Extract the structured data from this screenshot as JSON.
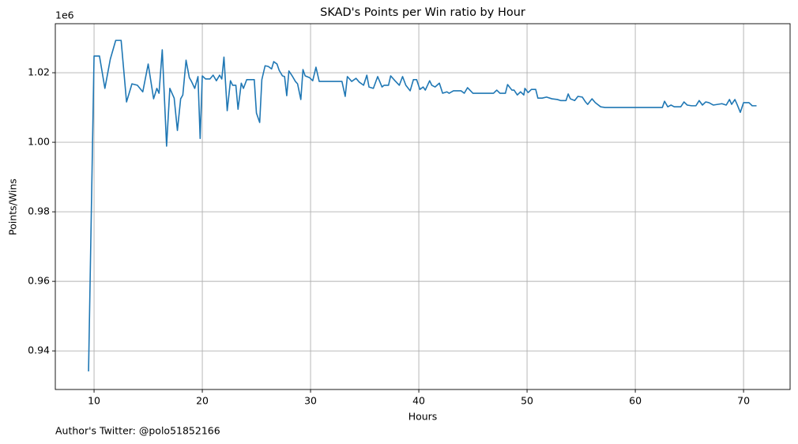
{
  "chart_data": {
    "type": "line",
    "title": "SKAD's Points per Win ratio by Hour",
    "xlabel": "Hours",
    "ylabel": "Points/Wins",
    "y_offset_label": "1e6",
    "footnote": "Author's Twitter: @polo51852166",
    "color": "#1f77b4",
    "grid": true,
    "xlim": [
      6.42,
      74.3
    ],
    "ylim": [
      0.9289,
      1.0341
    ],
    "xticks": [
      10,
      20,
      30,
      40,
      50,
      60,
      70
    ],
    "yticks": [
      0.94,
      0.96,
      0.98,
      {
        "value": 1,
        "label": "1.00"
      },
      1.02
    ],
    "x": [
      9.49,
      10.0,
      10.5,
      11.0,
      11.5,
      12.0,
      12.5,
      13.0,
      13.5,
      14.0,
      14.5,
      15.0,
      15.5,
      15.8,
      16.0,
      16.3,
      16.7,
      17.0,
      17.4,
      17.7,
      18.0,
      18.2,
      18.5,
      18.8,
      19.0,
      19.3,
      19.6,
      19.8,
      20.0,
      20.3,
      20.7,
      21.0,
      21.3,
      21.6,
      21.8,
      22.0,
      22.3,
      22.6,
      22.8,
      23.1,
      23.3,
      23.6,
      23.8,
      24.1,
      24.8,
      25.0,
      25.3,
      25.5,
      25.8,
      26.1,
      26.4,
      26.6,
      26.9,
      27.1,
      27.4,
      27.6,
      27.8,
      28.0,
      28.3,
      28.6,
      28.8,
      29.1,
      29.3,
      29.5,
      29.9,
      30.2,
      30.5,
      30.8,
      32.9,
      33.2,
      33.4,
      33.8,
      34.2,
      34.5,
      34.9,
      35.2,
      35.4,
      35.8,
      36.2,
      36.6,
      36.8,
      37.2,
      37.4,
      37.8,
      38.2,
      38.5,
      38.8,
      39.2,
      39.5,
      39.8,
      40.1,
      40.4,
      40.6,
      41.0,
      41.2,
      41.5,
      41.9,
      42.2,
      42.6,
      42.8,
      43.2,
      43.9,
      44.2,
      44.5,
      45.0,
      46.9,
      47.2,
      47.5,
      48.0,
      48.2,
      48.6,
      48.8,
      49.1,
      49.4,
      49.7,
      49.8,
      50.1,
      50.4,
      50.8,
      51.0,
      51.4,
      51.8,
      52.3,
      52.8,
      53.1,
      53.6,
      53.8,
      54.0,
      54.4,
      54.7,
      55.1,
      55.4,
      55.6,
      56.0,
      56.3,
      56.8,
      57.2,
      62.5,
      62.7,
      63.0,
      63.3,
      63.6,
      64.2,
      64.5,
      64.8,
      65.2,
      65.6,
      65.9,
      66.2,
      66.5,
      66.8,
      67.2,
      67.6,
      68.0,
      68.4,
      68.7,
      68.9,
      69.2,
      69.4,
      69.7,
      70.0,
      70.5,
      70.8,
      71.2
    ],
    "values": [
      0.9341,
      1.0248,
      1.0248,
      1.0155,
      1.0239,
      1.0293,
      1.0293,
      1.0116,
      1.0168,
      1.0164,
      1.0145,
      1.0225,
      1.0125,
      1.0155,
      1.0141,
      1.0266,
      0.9989,
      1.0155,
      1.0127,
      1.0034,
      1.0125,
      1.0136,
      1.0236,
      1.0186,
      1.0175,
      1.0155,
      1.0189,
      1.0011,
      1.0191,
      1.0182,
      1.0182,
      1.0193,
      1.0177,
      1.0193,
      1.0182,
      1.0245,
      1.0091,
      1.0177,
      1.0164,
      1.0164,
      1.0095,
      1.017,
      1.0155,
      1.018,
      1.018,
      1.0084,
      1.0057,
      1.018,
      1.022,
      1.0218,
      1.0211,
      1.0232,
      1.0225,
      1.0207,
      1.0191,
      1.0189,
      1.0134,
      1.0205,
      1.0191,
      1.0175,
      1.0168,
      1.0123,
      1.0209,
      1.0191,
      1.0186,
      1.0177,
      1.0216,
      1.0175,
      1.0175,
      1.0132,
      1.0189,
      1.0175,
      1.0184,
      1.0173,
      1.0164,
      1.0193,
      1.0159,
      1.0155,
      1.0189,
      1.0159,
      1.0164,
      1.0164,
      1.0191,
      1.0177,
      1.0164,
      1.0189,
      1.0164,
      1.0148,
      1.018,
      1.018,
      1.0152,
      1.0159,
      1.015,
      1.0177,
      1.0164,
      1.0159,
      1.017,
      1.0141,
      1.0145,
      1.0141,
      1.0148,
      1.0148,
      1.0141,
      1.0157,
      1.0141,
      1.0141,
      1.015,
      1.0141,
      1.0141,
      1.0166,
      1.015,
      1.015,
      1.0136,
      1.0145,
      1.0136,
      1.0155,
      1.0143,
      1.0152,
      1.0152,
      1.0127,
      1.0127,
      1.013,
      1.0125,
      1.0123,
      1.012,
      1.012,
      1.0139,
      1.0125,
      1.012,
      1.0132,
      1.013,
      1.0116,
      1.0109,
      1.0125,
      1.0114,
      1.0102,
      1.01,
      1.01,
      1.0118,
      1.0102,
      1.0107,
      1.0102,
      1.0102,
      1.0116,
      1.0107,
      1.0105,
      1.0105,
      1.012,
      1.0107,
      1.0116,
      1.0114,
      1.0107,
      1.0109,
      1.0111,
      1.0107,
      1.0123,
      1.0109,
      1.0123,
      1.0109,
      1.0086,
      1.0114,
      1.0114,
      1.0105,
      1.0105
    ]
  }
}
